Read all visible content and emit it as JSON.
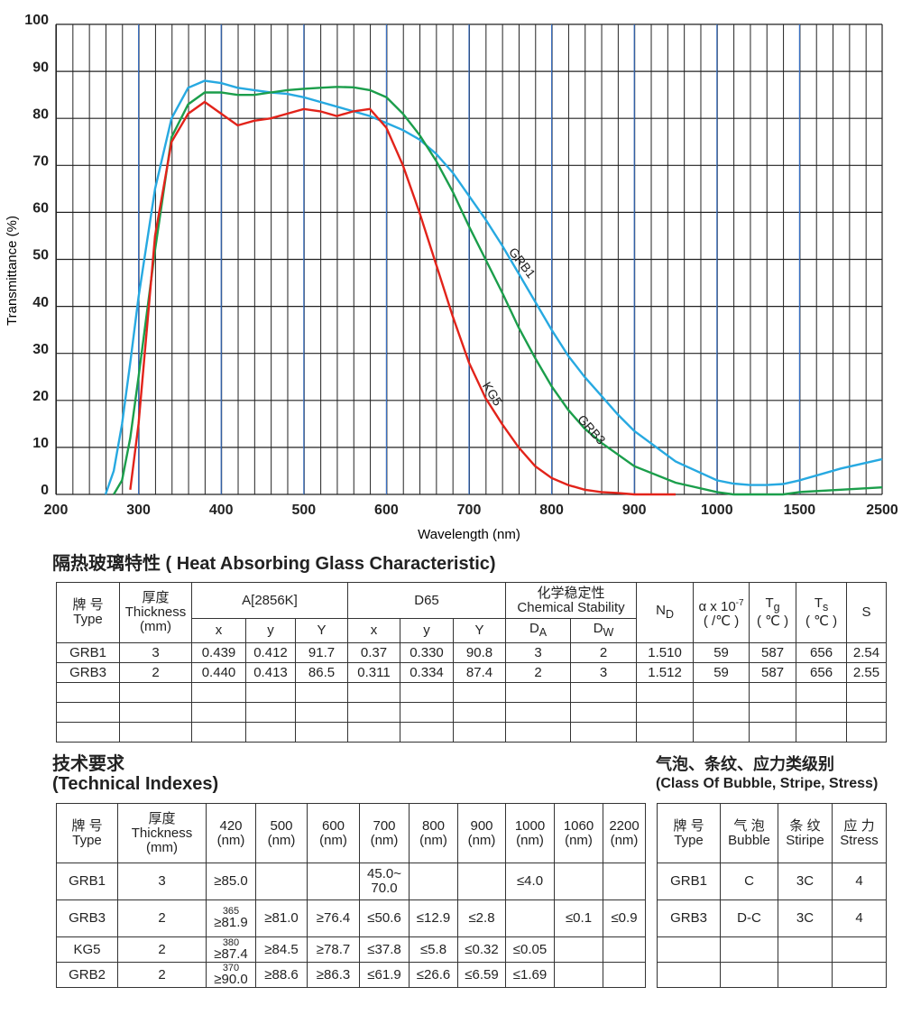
{
  "chart_data": {
    "type": "line",
    "xlabel": "Wavelength (nm)",
    "ylabel": "Transmittance (%)",
    "x": [
      250,
      260,
      270,
      280,
      290,
      300,
      320,
      340,
      360,
      380,
      400,
      420,
      440,
      460,
      480,
      500,
      520,
      540,
      560,
      580,
      600,
      620,
      640,
      660,
      680,
      700,
      720,
      740,
      760,
      780,
      800,
      820,
      840,
      860,
      880,
      900,
      950,
      1000,
      1100,
      1200,
      1300,
      1400,
      1500,
      2000,
      2500
    ],
    "series": [
      {
        "name": "GRB1",
        "color": "#27a9e1",
        "values": [
          null,
          0,
          5,
          15,
          28,
          42,
          65,
          80,
          86.5,
          88,
          87.5,
          86.5,
          86,
          85.5,
          85.2,
          84.5,
          83.5,
          82.5,
          81.5,
          80.5,
          79,
          77.5,
          75.5,
          72.5,
          68.5,
          63.5,
          58.5,
          53,
          47,
          41,
          35,
          29.5,
          25,
          21,
          17,
          13.5,
          7,
          3,
          2.3,
          2,
          2,
          2.2,
          3,
          5.5,
          7.5
        ]
      },
      {
        "name": "GRB3",
        "color": "#1b9e4b",
        "values": [
          null,
          null,
          0,
          3,
          12,
          25,
          52,
          76,
          83,
          85.5,
          85.5,
          85,
          85,
          85.5,
          86,
          86.3,
          86.5,
          86.7,
          86.6,
          86,
          84.5,
          81,
          76.5,
          71,
          64.5,
          57,
          50,
          43,
          35.5,
          29,
          23,
          18,
          14,
          11,
          8.5,
          6,
          2.5,
          0.5,
          0,
          0,
          0,
          0,
          0.5,
          1,
          1.5
        ]
      },
      {
        "name": "KG5",
        "color": "#e2231a",
        "values": [
          null,
          null,
          null,
          null,
          1,
          15,
          55,
          75,
          81,
          83.5,
          81,
          78.5,
          79.5,
          80,
          81,
          82,
          81.5,
          80.5,
          81.5,
          82,
          78,
          70,
          60,
          49,
          38,
          28,
          20.5,
          15,
          10,
          6,
          3.5,
          2,
          1,
          0.5,
          0.3,
          0,
          0,
          null,
          null,
          null,
          null,
          null,
          null,
          null,
          null
        ]
      }
    ],
    "annotations": [
      "GRB1",
      "GRB3",
      "KG5"
    ],
    "xlim": [
      200,
      2500
    ],
    "xticks": [
      200,
      300,
      400,
      500,
      600,
      700,
      800,
      900,
      1000,
      1500,
      2500
    ],
    "ylim": [
      0,
      100
    ],
    "yticks": [
      0,
      10,
      20,
      30,
      40,
      50,
      60,
      70,
      80,
      90,
      100
    ],
    "grid": true
  },
  "table1": {
    "title": "隔热玻璃特性 ( Heat Absorbing Glass Characteristic)",
    "head": {
      "type": [
        "牌 号",
        "Type"
      ],
      "thickness": [
        "厚度",
        "Thickness",
        "(mm)"
      ],
      "a": "A[2856K]",
      "d65": "D65",
      "chem": [
        "化学稳定性",
        "Chemical Stability"
      ],
      "nd": {
        "main": "N",
        "sub": "D"
      },
      "alpha": {
        "main": "α x 10",
        "sup": "-7",
        "unit": "( /℃ )"
      },
      "tg": {
        "main": "T",
        "sub": "g",
        "unit": "( ℃ )"
      },
      "ts": {
        "main": "T",
        "sub": "s",
        "unit": "( ℃ )"
      },
      "s": "S",
      "sub": [
        "x",
        "y",
        "Y",
        "x",
        "y",
        "Y"
      ],
      "da": {
        "main": "D",
        "sub": "A"
      },
      "dw": {
        "main": "D",
        "sub": "W"
      }
    },
    "rows": [
      [
        "GRB1",
        "3",
        "0.439",
        "0.412",
        "91.7",
        "0.37",
        "0.330",
        "90.8",
        "3",
        "2",
        "1.510",
        "59",
        "587",
        "656",
        "2.54"
      ],
      [
        "GRB3",
        "2",
        "0.440",
        "0.413",
        "86.5",
        "0.311",
        "0.334",
        "87.4",
        "2",
        "3",
        "1.512",
        "59",
        "587",
        "656",
        "2.55"
      ]
    ]
  },
  "table2": {
    "title": [
      "技术要求",
      "(Technical Indexes)"
    ],
    "head": [
      [
        "牌 号",
        "Type"
      ],
      [
        "厚度",
        "Thickness",
        "(mm)"
      ],
      [
        "420",
        "(nm)"
      ],
      [
        "500",
        "(nm)"
      ],
      [
        "600",
        "(nm)"
      ],
      [
        "700",
        "(nm)"
      ],
      [
        "800",
        "(nm)"
      ],
      [
        "900",
        "(nm)"
      ],
      [
        "1000",
        "(nm)"
      ],
      [
        "1060",
        "(nm)"
      ],
      [
        "2200",
        "(nm)"
      ]
    ],
    "rows": [
      [
        "GRB1",
        "3",
        "≥85.0",
        null,
        null,
        [
          "45.0~",
          "70.0"
        ],
        null,
        null,
        "≤4.0",
        null,
        null
      ],
      [
        "GRB3",
        "2",
        {
          "top": "365",
          "main": "≥81.9"
        },
        "≥81.0",
        "≥76.4",
        "≤50.6",
        "≤12.9",
        "≤2.8",
        null,
        "≤0.1",
        "≤0.9"
      ],
      [
        "KG5",
        "2",
        {
          "top": "380",
          "main": "≥87.4"
        },
        "≥84.5",
        "≥78.7",
        "≤37.8",
        "≤5.8",
        "≤0.32",
        "≤0.05",
        null,
        null
      ],
      [
        "GRB2",
        "2",
        {
          "top": "370",
          "main": "≥90.0"
        },
        "≥88.6",
        "≥86.3",
        "≤61.9",
        "≤26.6",
        "≤6.59",
        "≤1.69",
        null,
        null
      ]
    ]
  },
  "table3": {
    "title": [
      "气泡、条纹、应力类级别",
      "(Class Of Bubble, Stripe, Stress)"
    ],
    "head": [
      [
        "牌 号",
        "Type"
      ],
      [
        "气 泡",
        "Bubble"
      ],
      [
        "条 纹",
        "Stiripe"
      ],
      [
        "应 力",
        "Stress"
      ]
    ],
    "rows": [
      [
        "GRB1",
        "C",
        "3C",
        "4"
      ],
      [
        "GRB3",
        "D-C",
        "3C",
        "4"
      ]
    ]
  }
}
